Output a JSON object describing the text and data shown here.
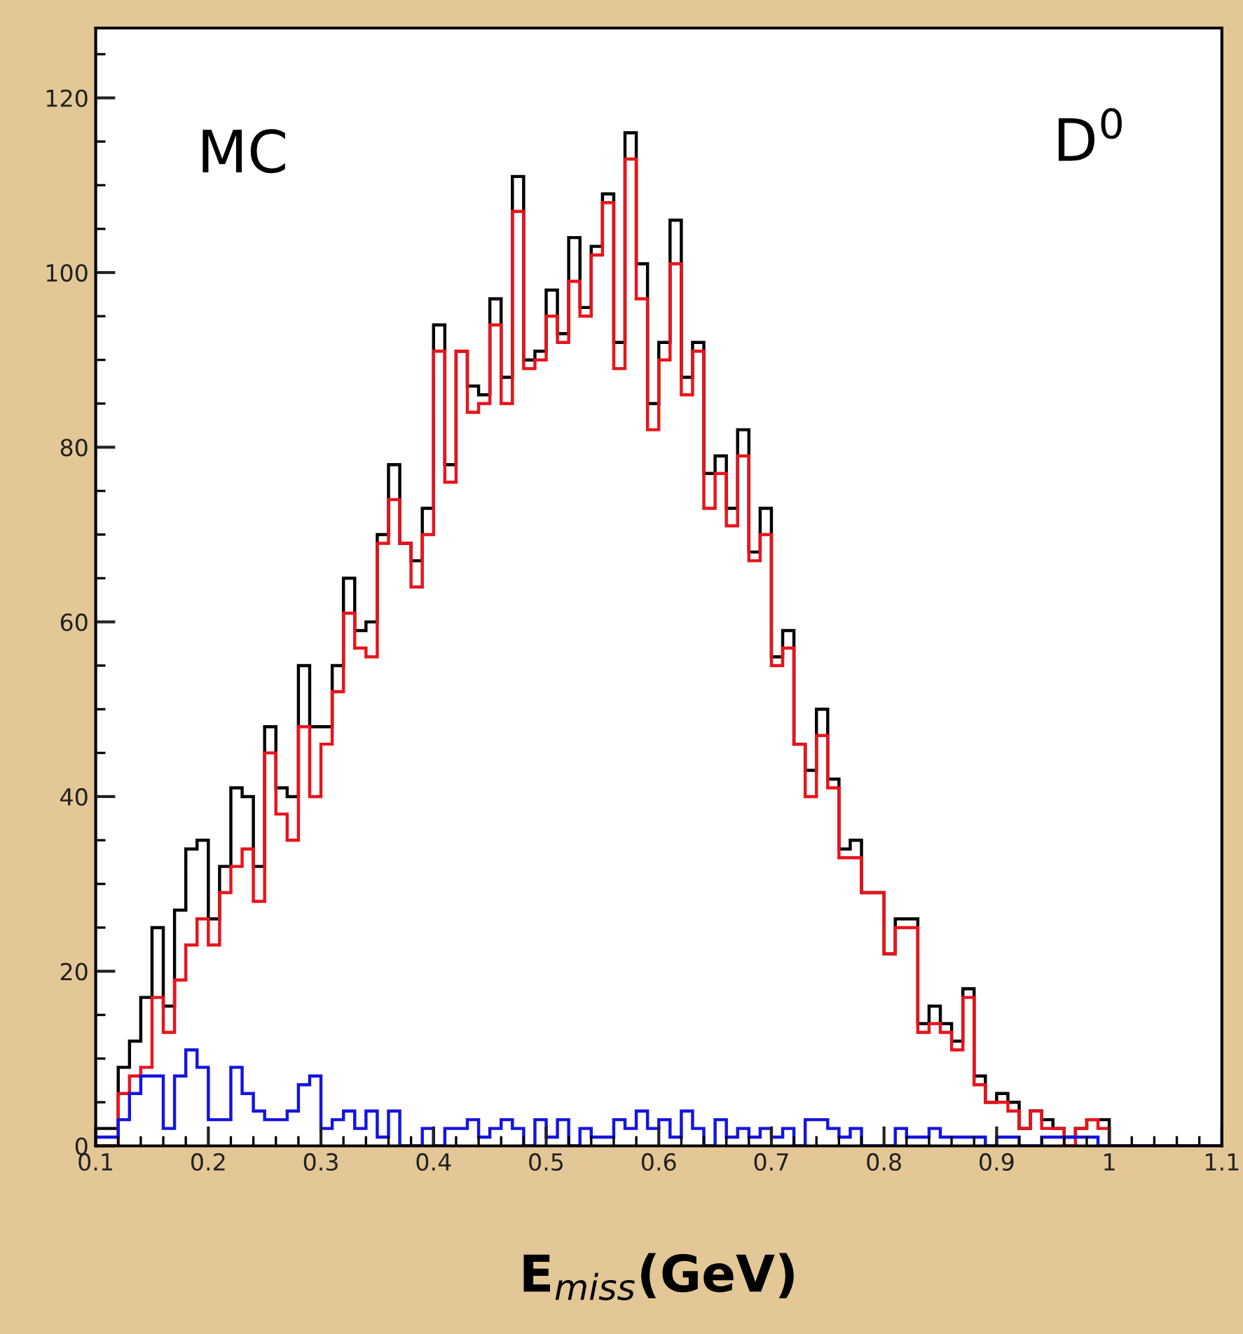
{
  "chart_data": {
    "type": "histogram",
    "xlabel": "E$_{miss}$(GeV)",
    "annotations": [
      "MC",
      "D$^{0}$"
    ],
    "bins": [
      0.1,
      0.11,
      0.12,
      0.13,
      0.14,
      0.15,
      0.16,
      0.17,
      0.18,
      0.19,
      0.2,
      0.21,
      0.22,
      0.23,
      0.24,
      0.25,
      0.26,
      0.27,
      0.28,
      0.29,
      0.3,
      0.31,
      0.32,
      0.33,
      0.34,
      0.35,
      0.36,
      0.37,
      0.38,
      0.39,
      0.4,
      0.41,
      0.42,
      0.43,
      0.44,
      0.45,
      0.46,
      0.47,
      0.48,
      0.49,
      0.5,
      0.51,
      0.52,
      0.53,
      0.54,
      0.55,
      0.56,
      0.57,
      0.58,
      0.59,
      0.6,
      0.61,
      0.62,
      0.63,
      0.64,
      0.65,
      0.66,
      0.67,
      0.68,
      0.69,
      0.7,
      0.71,
      0.72,
      0.73,
      0.74,
      0.75,
      0.76,
      0.77,
      0.78,
      0.79,
      0.8,
      0.81,
      0.82,
      0.83,
      0.84,
      0.85,
      0.86,
      0.87,
      0.88,
      0.89,
      0.9,
      0.91,
      0.92,
      0.93,
      0.94,
      0.95,
      0.96,
      0.97,
      0.98,
      0.99,
      1.0,
      1.01,
      1.02,
      1.03,
      1.04,
      1.05,
      1.06,
      1.07,
      1.08,
      1.09,
      1.1
    ],
    "series": [
      {
        "color": "#000000",
        "values": [
          2,
          2,
          9,
          12,
          17,
          25,
          16,
          27,
          34,
          35,
          26,
          32,
          41,
          40,
          32,
          48,
          41,
          40,
          55,
          48,
          48,
          55,
          65,
          59,
          60,
          70,
          78,
          69,
          67,
          73,
          94,
          78,
          91,
          87,
          86,
          97,
          88,
          111,
          90,
          91,
          98,
          93,
          104,
          96,
          103,
          109,
          92,
          116,
          101,
          85,
          92,
          106,
          88,
          92,
          77,
          79,
          73,
          82,
          68,
          73,
          56,
          59,
          46,
          43,
          50,
          42,
          34,
          35,
          29,
          29,
          22,
          26,
          26,
          14,
          16,
          14,
          12,
          18,
          8,
          5,
          6,
          5,
          2,
          4,
          3,
          2,
          1,
          2,
          3,
          3,
          0,
          0,
          0,
          0,
          0,
          0,
          0,
          0,
          0,
          0
        ]
      },
      {
        "color": "#e8141c",
        "values": [
          0,
          0,
          6,
          8,
          9,
          17,
          13,
          19,
          23,
          26,
          23,
          29,
          32,
          34,
          28,
          45,
          38,
          35,
          48,
          40,
          46,
          52,
          61,
          57,
          56,
          69,
          74,
          69,
          64,
          70,
          91,
          76,
          91,
          84,
          85,
          94,
          85,
          107,
          89,
          90,
          95,
          92,
          99,
          95,
          102,
          108,
          89,
          113,
          97,
          82,
          90,
          101,
          86,
          91,
          73,
          77,
          71,
          79,
          67,
          70,
          55,
          57,
          46,
          40,
          47,
          41,
          33,
          33,
          29,
          29,
          22,
          25,
          25,
          13,
          14,
          13,
          11,
          17,
          7,
          5,
          5,
          4,
          2,
          4,
          2,
          2,
          0,
          2,
          3,
          2,
          0,
          0,
          0,
          0,
          0,
          0,
          0,
          0,
          0,
          0
        ]
      },
      {
        "color": "#1414e0",
        "values": [
          1,
          1,
          3,
          6,
          8,
          8,
          2,
          8,
          11,
          9,
          3,
          3,
          9,
          6,
          4,
          3,
          3,
          4,
          7,
          8,
          2,
          3,
          4,
          2,
          4,
          1,
          4,
          0,
          0,
          2,
          0,
          2,
          2,
          3,
          1,
          2,
          3,
          2,
          0,
          3,
          1,
          3,
          0,
          2,
          1,
          1,
          3,
          2,
          4,
          2,
          3,
          1,
          4,
          2,
          0,
          3,
          1,
          2,
          1,
          2,
          1,
          2,
          0,
          3,
          3,
          2,
          1,
          2,
          0,
          0,
          0,
          2,
          1,
          1,
          2,
          1,
          1,
          1,
          1,
          0,
          1,
          1,
          0,
          0,
          1,
          1,
          1,
          1,
          1,
          0,
          0,
          0,
          0,
          0,
          0,
          0,
          0,
          0,
          0,
          0
        ]
      }
    ],
    "xlim": [
      0.1,
      1.1
    ],
    "xticks": [
      0.1,
      0.2,
      0.3,
      0.4,
      0.5,
      0.6,
      0.7,
      0.8,
      0.9,
      1,
      1.1
    ],
    "ylim": [
      0,
      128
    ],
    "yticks": [
      0,
      20,
      40,
      60,
      80,
      100,
      120
    ],
    "grid": false,
    "legend": false
  }
}
